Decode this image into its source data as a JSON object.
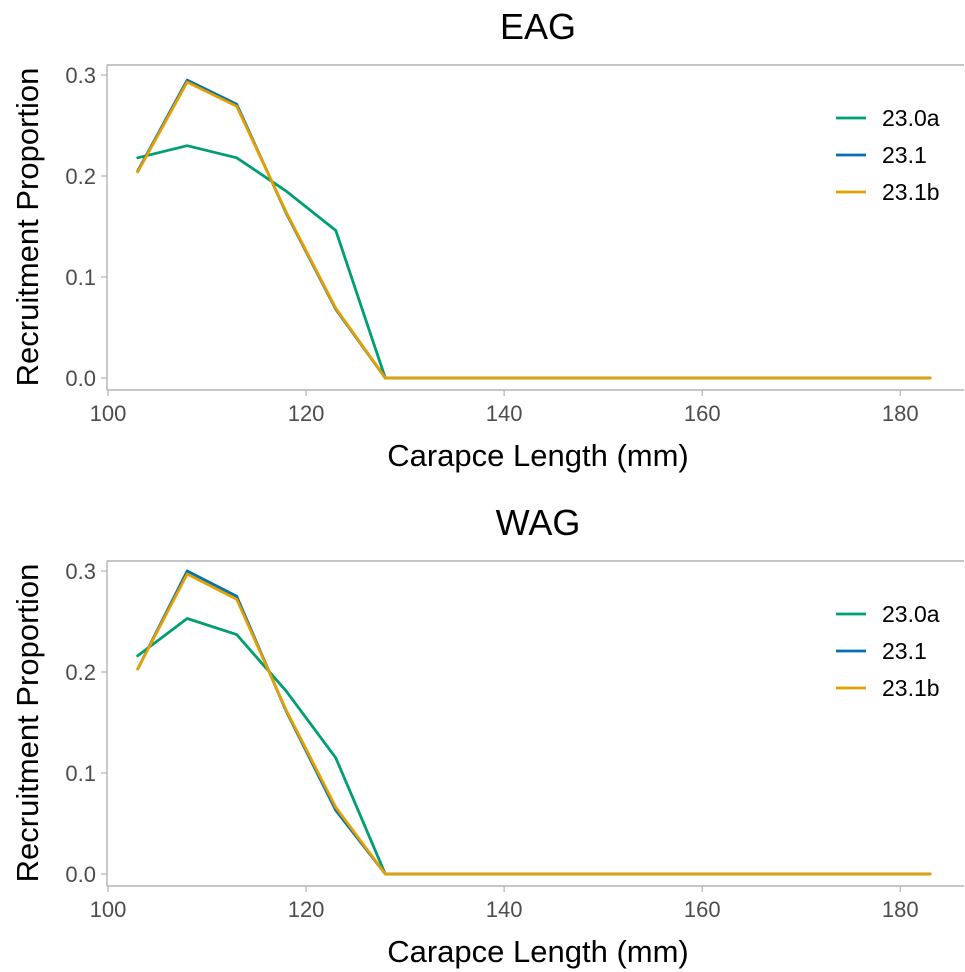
{
  "chart_data": [
    {
      "type": "line",
      "title": "EAG",
      "xlabel": "Carapce Length (mm)",
      "ylabel": "Recruitment Proportion",
      "xlim": [
        100,
        185
      ],
      "ylim": [
        0,
        0.31
      ],
      "xticks": [
        100,
        120,
        140,
        160,
        180
      ],
      "xtick_labels": [
        "100",
        "120",
        "140",
        "160",
        "180"
      ],
      "yticks": [
        0.0,
        0.1,
        0.2,
        0.3
      ],
      "ytick_labels": [
        "0.0",
        "0.1",
        "0.2",
        "0.3"
      ],
      "grid": false,
      "legend_position": "right",
      "x": [
        103,
        108,
        113,
        118,
        123,
        128,
        133,
        138,
        143,
        148,
        153,
        158,
        163,
        168,
        173,
        178,
        183
      ],
      "series": [
        {
          "name": "23.0a",
          "color": "#009E73",
          "values": [
            0.218,
            0.23,
            0.218,
            0.185,
            0.146,
            0.0,
            0,
            0,
            0,
            0,
            0,
            0,
            0,
            0,
            0,
            0,
            0
          ]
        },
        {
          "name": "23.1",
          "color": "#0072B2",
          "values": [
            0.205,
            0.295,
            0.271,
            0.163,
            0.068,
            0.0,
            0,
            0,
            0,
            0,
            0,
            0,
            0,
            0,
            0,
            0,
            0
          ]
        },
        {
          "name": "23.1b",
          "color": "#E69F00",
          "values": [
            0.204,
            0.293,
            0.269,
            0.164,
            0.069,
            0.0,
            0,
            0,
            0,
            0,
            0,
            0,
            0,
            0,
            0,
            0,
            0
          ]
        }
      ]
    },
    {
      "type": "line",
      "title": "WAG",
      "xlabel": "Carapce Length (mm)",
      "ylabel": "Recruitment Proportion",
      "xlim": [
        100,
        185
      ],
      "ylim": [
        0,
        0.31
      ],
      "xticks": [
        100,
        120,
        140,
        160,
        180
      ],
      "xtick_labels": [
        "100",
        "120",
        "140",
        "160",
        "180"
      ],
      "yticks": [
        0.0,
        0.1,
        0.2,
        0.3
      ],
      "ytick_labels": [
        "0.0",
        "0.1",
        "0.2",
        "0.3"
      ],
      "grid": false,
      "legend_position": "right",
      "x": [
        103,
        108,
        113,
        118,
        123,
        128,
        133,
        138,
        143,
        148,
        153,
        158,
        163,
        168,
        173,
        178,
        183
      ],
      "series": [
        {
          "name": "23.0a",
          "color": "#009E73",
          "values": [
            0.216,
            0.253,
            0.237,
            0.181,
            0.115,
            0.0,
            0,
            0,
            0,
            0,
            0,
            0,
            0,
            0,
            0,
            0,
            0
          ]
        },
        {
          "name": "23.1",
          "color": "#0072B2",
          "values": [
            0.203,
            0.3,
            0.275,
            0.161,
            0.063,
            0.0,
            0,
            0,
            0,
            0,
            0,
            0,
            0,
            0,
            0,
            0,
            0
          ]
        },
        {
          "name": "23.1b",
          "color": "#E69F00",
          "values": [
            0.203,
            0.297,
            0.272,
            0.162,
            0.066,
            0.0,
            0,
            0,
            0,
            0,
            0,
            0,
            0,
            0,
            0,
            0,
            0
          ]
        }
      ]
    }
  ]
}
